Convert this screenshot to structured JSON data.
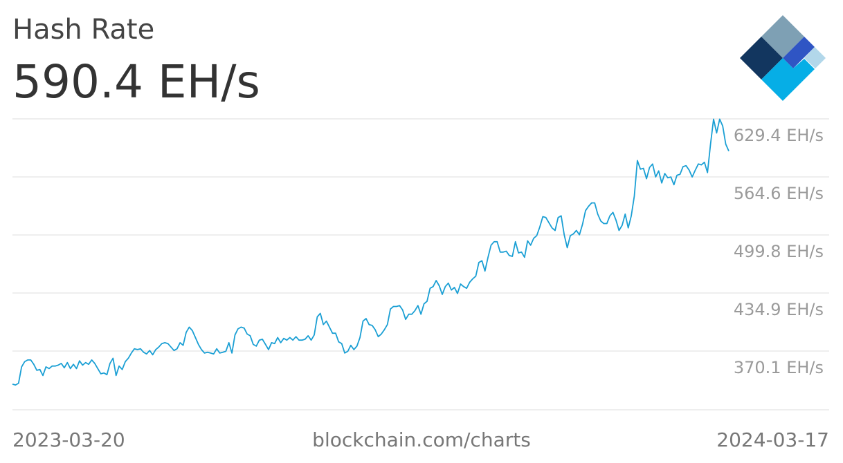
{
  "header": {
    "title": "Hash Rate",
    "current_value": "590.4 EH/s"
  },
  "footer": {
    "start_date": "2023-03-20",
    "source": "blockchain.com/charts",
    "end_date": "2024-03-17"
  },
  "colors": {
    "line": "#1a9fd4",
    "grid": "#dddddd",
    "tick_text": "#9a9a9a",
    "logo": [
      "#12365f",
      "#7ea0b4",
      "#2f55c4",
      "#06aee6",
      "#b2d7ea"
    ]
  },
  "chart_data": {
    "type": "line",
    "title": "Hash Rate",
    "xlabel": "",
    "ylabel": "",
    "x_start": "2023-03-20",
    "x_end": "2024-03-17",
    "y_ticks": [
      629.4,
      564.6,
      499.8,
      434.9,
      370.1
    ],
    "y_tick_labels": [
      "629.4 EH/s",
      "564.6 EH/s",
      "499.8 EH/s",
      "434.9 EH/s",
      "370.1 EH/s"
    ],
    "ylim": [
      305.3,
      642.3
    ],
    "grid": true,
    "series": [
      {
        "values": [
          335,
          334,
          336,
          355,
          361,
          363,
          363,
          358,
          351,
          352,
          345,
          355,
          353,
          356,
          356,
          357,
          359,
          354,
          360,
          353,
          358,
          353,
          362,
          357,
          360,
          358,
          363,
          359,
          353,
          347,
          348,
          346,
          359,
          365,
          345,
          356,
          352,
          361,
          365,
          371,
          376,
          375,
          376,
          372,
          370,
          374,
          369,
          375,
          378,
          382,
          383,
          382,
          378,
          374,
          376,
          383,
          380,
          395,
          401,
          397,
          389,
          381,
          375,
          371,
          372,
          371,
          370,
          376,
          371,
          372,
          373,
          383,
          371,
          392,
          399,
          401,
          400,
          393,
          391,
          381,
          379,
          386,
          387,
          381,
          375,
          383,
          382,
          389,
          383,
          388,
          386,
          389,
          386,
          390,
          386,
          386,
          387,
          391,
          386,
          392,
          413,
          417,
          404,
          408,
          401,
          394,
          394,
          384,
          382,
          371,
          373,
          380,
          375,
          379,
          389,
          408,
          411,
          404,
          403,
          398,
          390,
          393,
          398,
          404,
          422,
          425,
          425,
          426,
          421,
          410,
          416,
          416,
          420,
          426,
          416,
          428,
          431,
          446,
          448,
          455,
          449,
          439,
          448,
          452,
          444,
          447,
          440,
          451,
          448,
          446,
          453,
          457,
          460,
          476,
          478,
          466,
          482,
          496,
          500,
          500,
          488,
          488,
          489,
          484,
          483,
          500,
          487,
          488,
          482,
          501,
          496,
          504,
          507,
          517,
          529,
          528,
          522,
          516,
          513,
          528,
          530,
          508,
          493,
          507,
          509,
          513,
          508,
          520,
          536,
          541,
          545,
          545,
          532,
          524,
          521,
          521,
          530,
          534,
          525,
          513,
          519,
          532,
          516,
          530,
          553,
          594,
          584,
          585,
          573,
          586,
          590,
          575,
          582,
          568,
          579,
          574,
          575,
          566,
          577,
          578,
          587,
          588,
          583,
          575,
          583,
          590,
          589,
          592,
          580,
          613,
          642,
          626,
          642,
          634,
          613,
          605
        ]
      }
    ]
  }
}
